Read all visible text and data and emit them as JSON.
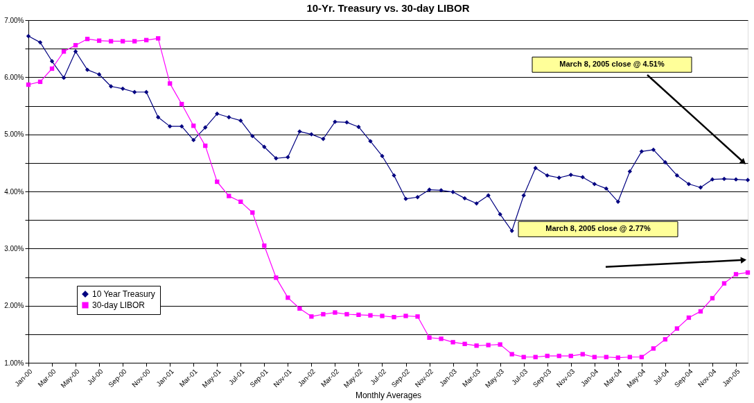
{
  "chart_data": {
    "type": "line",
    "title": "10-Yr. Treasury vs. 30-day LIBOR",
    "xlabel": "Monthly Averages",
    "categories": [
      "Jan-00",
      null,
      "Mar-00",
      null,
      "May-00",
      null,
      "Jul-00",
      null,
      "Sep-00",
      null,
      "Nov-00",
      null,
      "Jan-01",
      null,
      "Mar-01",
      null,
      "May-01",
      null,
      "Jul-01",
      null,
      "Sep-01",
      null,
      "Nov-01",
      null,
      "Jan-02",
      null,
      "Mar-02",
      null,
      "May-02",
      null,
      "Jul-02",
      null,
      "Sep-02",
      null,
      "Nov-02",
      null,
      "Jan-03",
      null,
      "Mar-03",
      null,
      "May-03",
      null,
      "Jul-03",
      null,
      "Sep-03",
      null,
      "Nov-03",
      null,
      "Jan-04",
      null,
      "Mar-04",
      null,
      "May-04",
      null,
      "Jul-04",
      null,
      "Sep-04",
      null,
      "Nov-04",
      null,
      "Jan-05",
      null
    ],
    "series": [
      {
        "name": "10 Year Treasury",
        "color": "#000080",
        "marker": "diamond",
        "values": [
          6.72,
          6.61,
          6.28,
          5.99,
          6.45,
          6.13,
          6.05,
          5.84,
          5.8,
          5.74,
          5.74,
          5.3,
          5.14,
          5.14,
          4.9,
          5.12,
          5.36,
          5.3,
          5.24,
          4.97,
          4.78,
          4.58,
          4.6,
          5.05,
          5.0,
          4.92,
          5.22,
          5.21,
          5.13,
          4.88,
          4.62,
          4.28,
          3.87,
          3.9,
          4.03,
          4.02,
          3.99,
          3.88,
          3.79,
          3.93,
          3.6,
          3.31,
          3.93,
          4.41,
          4.28,
          4.24,
          4.29,
          4.25,
          4.13,
          4.05,
          3.82,
          4.35,
          4.7,
          4.73,
          4.51,
          4.28,
          4.13,
          4.07,
          4.21,
          4.22,
          4.21,
          4.2
        ]
      },
      {
        "name": "30-day LIBOR",
        "color": "#ff00ff",
        "marker": "square",
        "values": [
          5.87,
          5.92,
          6.15,
          6.45,
          6.56,
          6.67,
          6.64,
          6.63,
          6.63,
          6.63,
          6.65,
          6.68,
          5.89,
          5.53,
          5.15,
          4.8,
          4.17,
          3.92,
          3.82,
          3.63,
          3.05,
          2.49,
          2.14,
          1.95,
          1.81,
          1.85,
          1.88,
          1.85,
          1.84,
          1.83,
          1.82,
          1.8,
          1.82,
          1.81,
          1.44,
          1.42,
          1.36,
          1.33,
          1.3,
          1.31,
          1.32,
          1.15,
          1.1,
          1.1,
          1.12,
          1.12,
          1.12,
          1.15,
          1.1,
          1.1,
          1.09,
          1.1,
          1.1,
          1.25,
          1.41,
          1.6,
          1.79,
          1.9,
          2.13,
          2.39,
          2.55,
          2.58
        ]
      }
    ],
    "ylim": [
      1,
      7
    ],
    "yticks": [
      {
        "value": 1,
        "label": "1.00%"
      },
      {
        "value": 1.5,
        "label": null
      },
      {
        "value": 2,
        "label": "2.00%"
      },
      {
        "value": 2.5,
        "label": null
      },
      {
        "value": 3,
        "label": "3.00%"
      },
      {
        "value": 3.5,
        "label": null
      },
      {
        "value": 4,
        "label": "4.00%"
      },
      {
        "value": 4.5,
        "label": null
      },
      {
        "value": 5,
        "label": "5.00%"
      },
      {
        "value": 5.5,
        "label": null
      },
      {
        "value": 6,
        "label": "6.00%"
      },
      {
        "value": 6.5,
        "label": null
      },
      {
        "value": 7,
        "label": "7.00%"
      }
    ],
    "grid": "y",
    "legend": "bottom left",
    "annotations": [
      "March 8, 2005 close @ 4.51%",
      "March 8, 2005 close @ 2.77%"
    ]
  }
}
